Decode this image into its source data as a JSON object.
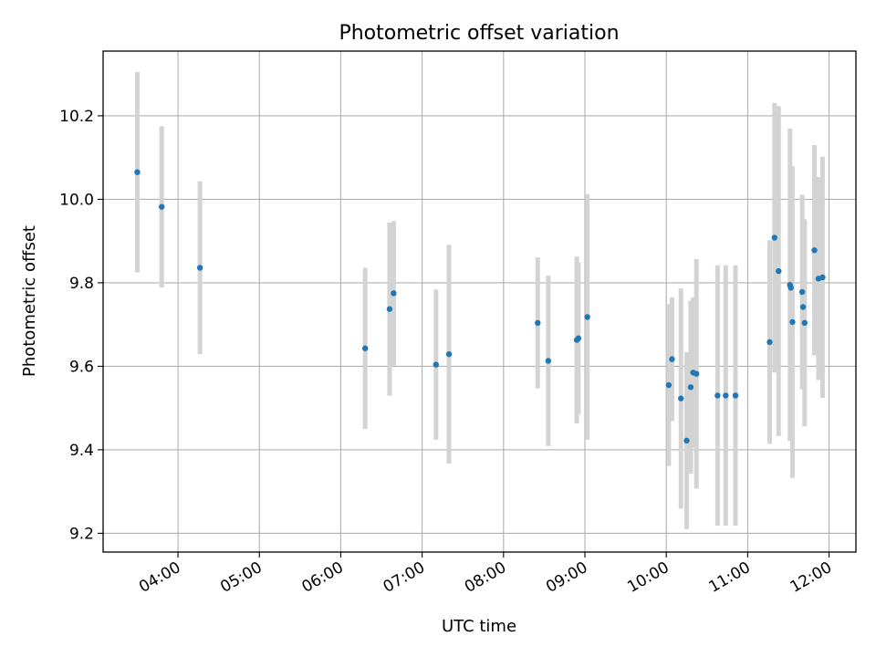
{
  "chart_data": {
    "type": "scatter",
    "title": "Photometric offset variation",
    "xlabel": "UTC time",
    "ylabel": "Photometric offset",
    "x_unit": "hours UTC",
    "xlim": [
      3.08,
      12.33
    ],
    "ylim": [
      9.155,
      10.355
    ],
    "x_ticks": [
      {
        "value": 4,
        "label": "04:00"
      },
      {
        "value": 5,
        "label": "05:00"
      },
      {
        "value": 6,
        "label": "06:00"
      },
      {
        "value": 7,
        "label": "07:00"
      },
      {
        "value": 8,
        "label": "08:00"
      },
      {
        "value": 9,
        "label": "09:00"
      },
      {
        "value": 10,
        "label": "10:00"
      },
      {
        "value": 11,
        "label": "11:00"
      },
      {
        "value": 12,
        "label": "12:00"
      }
    ],
    "y_ticks": [
      {
        "value": 9.2,
        "label": "9.2"
      },
      {
        "value": 9.4,
        "label": "9.4"
      },
      {
        "value": 9.6,
        "label": "9.6"
      },
      {
        "value": 9.8,
        "label": "9.8"
      },
      {
        "value": 10.0,
        "label": "10.0"
      },
      {
        "value": 10.2,
        "label": "10.2"
      }
    ],
    "grid": true,
    "legend": false,
    "point_color": "#1f77b4",
    "errorbar_color": "#d3d3d3",
    "points": [
      {
        "x": 3.5,
        "y": 10.065,
        "err": 0.24
      },
      {
        "x": 3.8,
        "y": 9.982,
        "err": 0.193
      },
      {
        "x": 4.27,
        "y": 9.836,
        "err": 0.207
      },
      {
        "x": 6.3,
        "y": 9.643,
        "err": 0.193
      },
      {
        "x": 6.6,
        "y": 9.737,
        "err": 0.207
      },
      {
        "x": 6.65,
        "y": 9.775,
        "err": 0.173
      },
      {
        "x": 7.17,
        "y": 9.604,
        "err": 0.18
      },
      {
        "x": 7.33,
        "y": 9.629,
        "err": 0.262
      },
      {
        "x": 8.42,
        "y": 9.704,
        "err": 0.157
      },
      {
        "x": 8.55,
        "y": 9.613,
        "err": 0.204
      },
      {
        "x": 8.9,
        "y": 9.663,
        "err": 0.2
      },
      {
        "x": 8.92,
        "y": 9.667,
        "err": 0.182
      },
      {
        "x": 9.03,
        "y": 9.718,
        "err": 0.294
      },
      {
        "x": 10.03,
        "y": 9.555,
        "err": 0.194
      },
      {
        "x": 10.07,
        "y": 9.617,
        "err": 0.148
      },
      {
        "x": 10.18,
        "y": 9.523,
        "err": 0.264
      },
      {
        "x": 10.25,
        "y": 9.422,
        "err": 0.212
      },
      {
        "x": 10.3,
        "y": 9.55,
        "err": 0.207
      },
      {
        "x": 10.33,
        "y": 9.585,
        "err": 0.18
      },
      {
        "x": 10.37,
        "y": 9.582,
        "err": 0.275
      },
      {
        "x": 10.63,
        "y": 9.53,
        "err": 0.312
      },
      {
        "x": 10.73,
        "y": 9.53,
        "err": 0.312
      },
      {
        "x": 10.85,
        "y": 9.53,
        "err": 0.312
      },
      {
        "x": 11.27,
        "y": 9.658,
        "err": 0.244
      },
      {
        "x": 11.33,
        "y": 9.908,
        "err": 0.323
      },
      {
        "x": 11.38,
        "y": 9.828,
        "err": 0.395
      },
      {
        "x": 11.52,
        "y": 9.795,
        "err": 0.374
      },
      {
        "x": 11.53,
        "y": 9.788,
        "err": 0.291
      },
      {
        "x": 11.55,
        "y": 9.706,
        "err": 0.373
      },
      {
        "x": 11.67,
        "y": 9.778,
        "err": 0.233
      },
      {
        "x": 11.68,
        "y": 9.742,
        "err": 0.196
      },
      {
        "x": 11.7,
        "y": 9.704,
        "err": 0.248
      },
      {
        "x": 11.82,
        "y": 9.878,
        "err": 0.252
      },
      {
        "x": 11.87,
        "y": 9.81,
        "err": 0.243
      },
      {
        "x": 11.92,
        "y": 9.813,
        "err": 0.289
      }
    ]
  }
}
